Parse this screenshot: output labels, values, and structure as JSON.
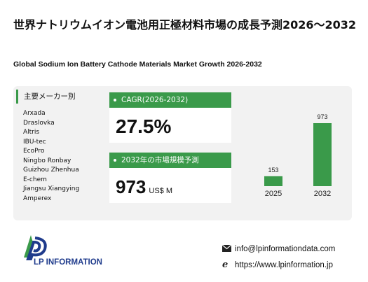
{
  "header": {
    "title": "世界ナトリウムイオン電池用正極材料市場の成長予測2026～2032",
    "subtitle": "Global Sodium Ion Battery Cathode Materials Market Growth 2026-2032"
  },
  "makers": {
    "heading": "主要メーカー別",
    "items": [
      "Arxada",
      "Draslovka",
      "Altris",
      "IBU-tec",
      "EcoPro",
      "Ningbo Ronbay",
      "Guizhou Zhenhua",
      "E-chem",
      "Jiangsu Xiangying",
      "Amperex"
    ]
  },
  "cagr": {
    "label": "CAGR(2026-2032)",
    "value": "27.5%"
  },
  "market_size": {
    "label": "2032年の市場規模予測",
    "value": "973",
    "unit": "US$ M"
  },
  "chart_data": {
    "type": "bar",
    "categories": [
      "2025",
      "2032"
    ],
    "values": [
      153,
      973
    ],
    "bar_color": "#3a9a4a"
  },
  "logo": {
    "text": "LP INFORMATION"
  },
  "contact": {
    "email": "info@lpinformationdata.com",
    "website": "https://www.lpinformation.jp"
  },
  "colors": {
    "accent": "#3a9a4a",
    "panel": "#f2f2f2",
    "logo_blue": "#1f3b8c"
  }
}
